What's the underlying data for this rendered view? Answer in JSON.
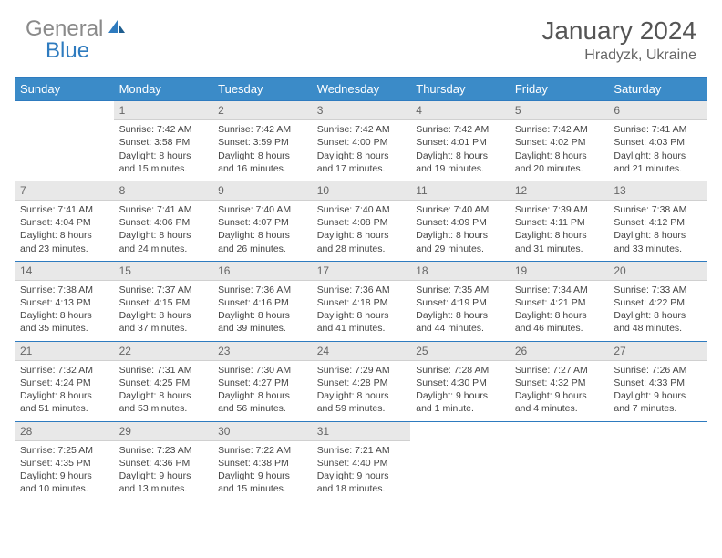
{
  "brand": {
    "part1": "General",
    "part2": "Blue"
  },
  "title": "January 2024",
  "location": "Hradyzk, Ukraine",
  "colors": {
    "header_bg": "#3b8bc8",
    "border": "#2e7bbf",
    "daynum_bg": "#e8e8e8",
    "logo_gray": "#8a8a8a",
    "logo_blue": "#2e7bbf"
  },
  "weekdays": [
    "Sunday",
    "Monday",
    "Tuesday",
    "Wednesday",
    "Thursday",
    "Friday",
    "Saturday"
  ],
  "weeks": [
    [
      null,
      {
        "n": "1",
        "sr": "7:42 AM",
        "ss": "3:58 PM",
        "dl": "8 hours and 15 minutes."
      },
      {
        "n": "2",
        "sr": "7:42 AM",
        "ss": "3:59 PM",
        "dl": "8 hours and 16 minutes."
      },
      {
        "n": "3",
        "sr": "7:42 AM",
        "ss": "4:00 PM",
        "dl": "8 hours and 17 minutes."
      },
      {
        "n": "4",
        "sr": "7:42 AM",
        "ss": "4:01 PM",
        "dl": "8 hours and 19 minutes."
      },
      {
        "n": "5",
        "sr": "7:42 AM",
        "ss": "4:02 PM",
        "dl": "8 hours and 20 minutes."
      },
      {
        "n": "6",
        "sr": "7:41 AM",
        "ss": "4:03 PM",
        "dl": "8 hours and 21 minutes."
      }
    ],
    [
      {
        "n": "7",
        "sr": "7:41 AM",
        "ss": "4:04 PM",
        "dl": "8 hours and 23 minutes."
      },
      {
        "n": "8",
        "sr": "7:41 AM",
        "ss": "4:06 PM",
        "dl": "8 hours and 24 minutes."
      },
      {
        "n": "9",
        "sr": "7:40 AM",
        "ss": "4:07 PM",
        "dl": "8 hours and 26 minutes."
      },
      {
        "n": "10",
        "sr": "7:40 AM",
        "ss": "4:08 PM",
        "dl": "8 hours and 28 minutes."
      },
      {
        "n": "11",
        "sr": "7:40 AM",
        "ss": "4:09 PM",
        "dl": "8 hours and 29 minutes."
      },
      {
        "n": "12",
        "sr": "7:39 AM",
        "ss": "4:11 PM",
        "dl": "8 hours and 31 minutes."
      },
      {
        "n": "13",
        "sr": "7:38 AM",
        "ss": "4:12 PM",
        "dl": "8 hours and 33 minutes."
      }
    ],
    [
      {
        "n": "14",
        "sr": "7:38 AM",
        "ss": "4:13 PM",
        "dl": "8 hours and 35 minutes."
      },
      {
        "n": "15",
        "sr": "7:37 AM",
        "ss": "4:15 PM",
        "dl": "8 hours and 37 minutes."
      },
      {
        "n": "16",
        "sr": "7:36 AM",
        "ss": "4:16 PM",
        "dl": "8 hours and 39 minutes."
      },
      {
        "n": "17",
        "sr": "7:36 AM",
        "ss": "4:18 PM",
        "dl": "8 hours and 41 minutes."
      },
      {
        "n": "18",
        "sr": "7:35 AM",
        "ss": "4:19 PM",
        "dl": "8 hours and 44 minutes."
      },
      {
        "n": "19",
        "sr": "7:34 AM",
        "ss": "4:21 PM",
        "dl": "8 hours and 46 minutes."
      },
      {
        "n": "20",
        "sr": "7:33 AM",
        "ss": "4:22 PM",
        "dl": "8 hours and 48 minutes."
      }
    ],
    [
      {
        "n": "21",
        "sr": "7:32 AM",
        "ss": "4:24 PM",
        "dl": "8 hours and 51 minutes."
      },
      {
        "n": "22",
        "sr": "7:31 AM",
        "ss": "4:25 PM",
        "dl": "8 hours and 53 minutes."
      },
      {
        "n": "23",
        "sr": "7:30 AM",
        "ss": "4:27 PM",
        "dl": "8 hours and 56 minutes."
      },
      {
        "n": "24",
        "sr": "7:29 AM",
        "ss": "4:28 PM",
        "dl": "8 hours and 59 minutes."
      },
      {
        "n": "25",
        "sr": "7:28 AM",
        "ss": "4:30 PM",
        "dl": "9 hours and 1 minute."
      },
      {
        "n": "26",
        "sr": "7:27 AM",
        "ss": "4:32 PM",
        "dl": "9 hours and 4 minutes."
      },
      {
        "n": "27",
        "sr": "7:26 AM",
        "ss": "4:33 PM",
        "dl": "9 hours and 7 minutes."
      }
    ],
    [
      {
        "n": "28",
        "sr": "7:25 AM",
        "ss": "4:35 PM",
        "dl": "9 hours and 10 minutes."
      },
      {
        "n": "29",
        "sr": "7:23 AM",
        "ss": "4:36 PM",
        "dl": "9 hours and 13 minutes."
      },
      {
        "n": "30",
        "sr": "7:22 AM",
        "ss": "4:38 PM",
        "dl": "9 hours and 15 minutes."
      },
      {
        "n": "31",
        "sr": "7:21 AM",
        "ss": "4:40 PM",
        "dl": "9 hours and 18 minutes."
      },
      null,
      null,
      null
    ]
  ],
  "labels": {
    "sunrise": "Sunrise:",
    "sunset": "Sunset:",
    "daylight": "Daylight:"
  }
}
